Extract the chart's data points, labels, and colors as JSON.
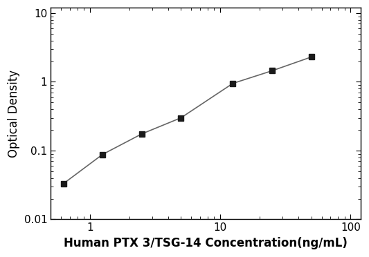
{
  "x_values": [
    0.625,
    1.25,
    2.5,
    5,
    12.5,
    25,
    50
  ],
  "y_values": [
    0.033,
    0.088,
    0.175,
    0.3,
    0.95,
    1.45,
    2.3
  ],
  "xlabel": "Human PTX 3/TSG-14 Concentration(ng/mL)",
  "ylabel": "Optical Density",
  "xlim": [
    0.5,
    120
  ],
  "ylim": [
    0.01,
    12
  ],
  "xticks": [
    1,
    10,
    100
  ],
  "xtick_labels": [
    "1",
    "10",
    "100"
  ],
  "yticks": [
    0.01,
    0.1,
    1,
    10
  ],
  "ytick_labels": [
    "0.01",
    "0.1",
    "1",
    "10"
  ],
  "line_color": "#666666",
  "marker_color": "#1a1a1a",
  "marker": "s",
  "marker_size": 6,
  "line_width": 1.2,
  "label_fontsize": 12,
  "tick_fontsize": 11,
  "background_color": "#ffffff"
}
